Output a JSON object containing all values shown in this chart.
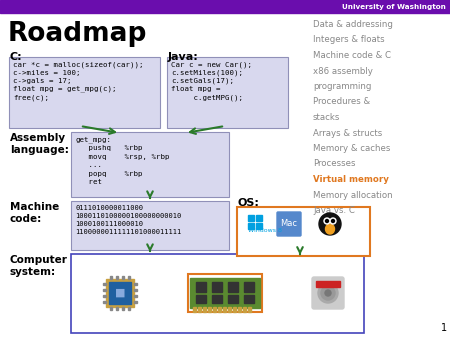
{
  "title": "Roadmap",
  "uw_header": "University of Washington",
  "slide_bg": "#ffffff",
  "purple_bar_color": "#6a0dad",
  "c_label": "C:",
  "java_label": "Java:",
  "assembly_label": "Assembly\nlanguage:",
  "machine_label": "Machine\ncode:",
  "computer_label": "Computer\nsystem:",
  "os_label": "OS:",
  "c_code": "car *c = malloc(sizeof(car));\nc->miles = 100;\nc->gals = 17;\nfloat mpg = get_mpg(c);\nfree(c);",
  "java_code": "Car c = new Car();\nc.setMiles(100);\nc.setGals(17);\nfloat mpg =\n     c.getMPG();",
  "asm_code": "get_mpg:\n   pushq   %rbp\n   movq    %rsp, %rbp\n   ...\n   popq    %rbp\n   ret",
  "machine_code": "0111010000011000\n1000110100000100000000010\n1000100111000010\n1100000011111101000011111",
  "roadmap_items": [
    "Data & addressing",
    "Integers & floats",
    "Machine code & C",
    "x86 assembly",
    "programming",
    "Procedures &",
    "stacks",
    "Arrays & structs",
    "Memory & caches",
    "Processes",
    "Virtual memory",
    "Memory allocation",
    "Java vs. C"
  ],
  "highlighted_item": "Virtual memory",
  "highlight_color": "#e07820",
  "normal_item_color": "#888888",
  "code_box_color": "#d8d8ee",
  "code_box_border": "#9090b8",
  "arrow_color": "#2a7a2a",
  "computer_box_border": "#4444bb",
  "os_box_border": "#e07820",
  "number_label": "1"
}
